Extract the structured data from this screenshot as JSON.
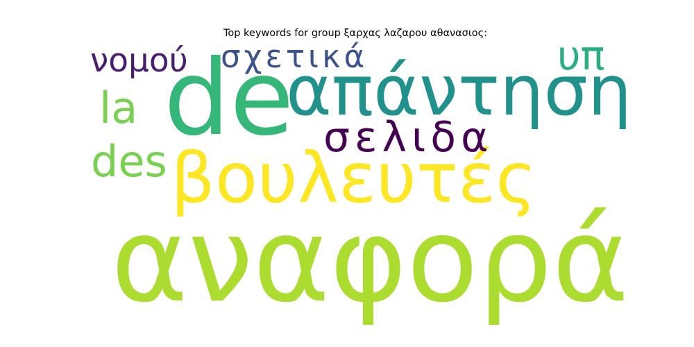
{
  "chart_data": {
    "type": "wordcloud",
    "title": "Top keywords for group ξαρχας λαζαρου αθανασιος:",
    "words": [
      {
        "text": "αναφορά",
        "color": "#addc30"
      },
      {
        "text": "de",
        "color": "#35b779"
      },
      {
        "text": "βουλευτές",
        "color": "#fde725"
      },
      {
        "text": "απάντηση",
        "color": "#21918c"
      },
      {
        "text": "σελιδα",
        "color": "#440154"
      },
      {
        "text": "νομού",
        "color": "#481f70"
      },
      {
        "text": "σχετικά",
        "color": "#3b528b"
      },
      {
        "text": "υπ",
        "color": "#28ae80"
      },
      {
        "text": "la",
        "color": "#7ad151"
      },
      {
        "text": "des",
        "color": "#7ad151"
      }
    ]
  }
}
